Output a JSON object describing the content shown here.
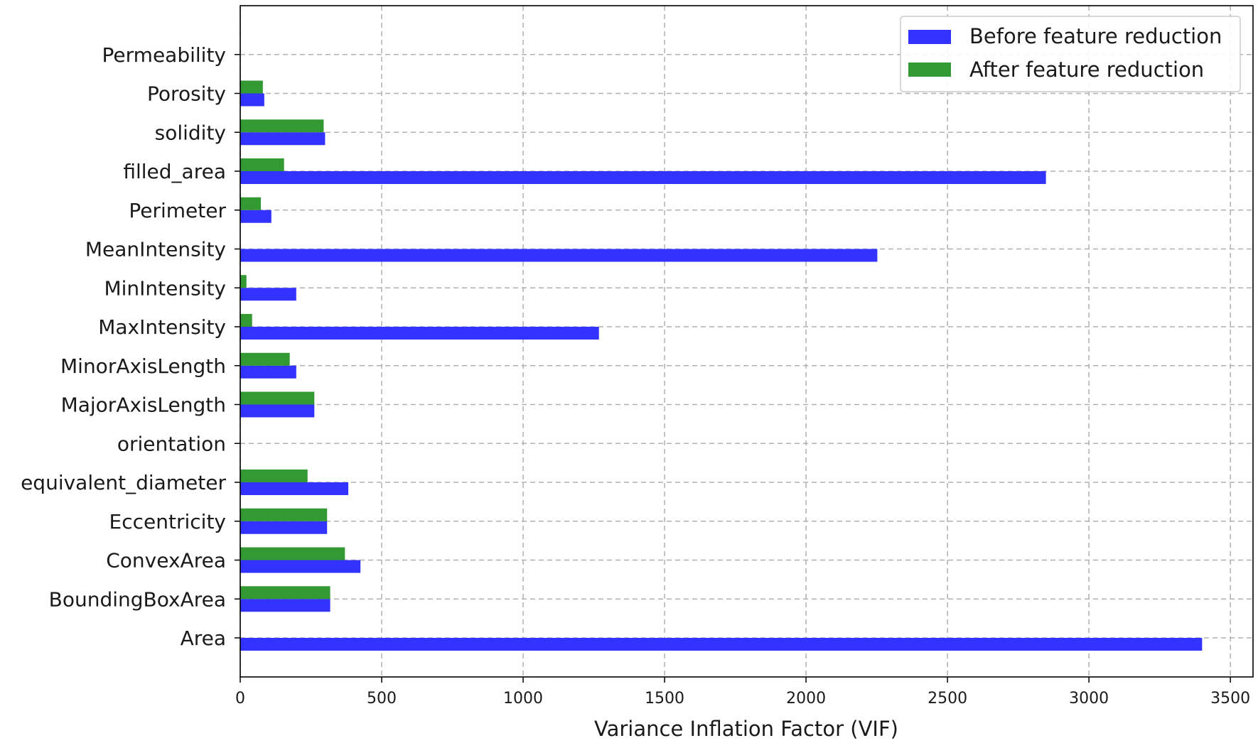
{
  "chart_data": {
    "type": "bar",
    "orientation": "horizontal",
    "xlabel": "Variance Inflation Factor (VIF)",
    "ylabel": "",
    "xlim": [
      0,
      3580
    ],
    "x_ticks": [
      0,
      500,
      1000,
      1500,
      2000,
      2500,
      3000,
      3500
    ],
    "grid": true,
    "legend_position": "top-right",
    "categories": [
      "Area",
      "BoundingBoxArea",
      "ConvexArea",
      "Eccentricity",
      "equivalent_diameter",
      "orientation",
      "MajorAxisLength",
      "MinorAxisLength",
      "MaxIntensity",
      "MinIntensity",
      "MeanIntensity",
      "Perimeter",
      "filled_area",
      "solidity",
      "Porosity",
      "Permeability"
    ],
    "series": [
      {
        "name": "Before feature reduction",
        "color": "#3333ff",
        "values": [
          3400,
          318,
          425,
          307,
          382,
          0,
          262,
          198,
          1268,
          198,
          2252,
          110,
          2848,
          300,
          85,
          0
        ]
      },
      {
        "name": "After feature reduction",
        "color": "#339933",
        "values": [
          0,
          318,
          370,
          307,
          238,
          0,
          262,
          175,
          42,
          22,
          0,
          73,
          155,
          295,
          80,
          0
        ]
      }
    ]
  }
}
